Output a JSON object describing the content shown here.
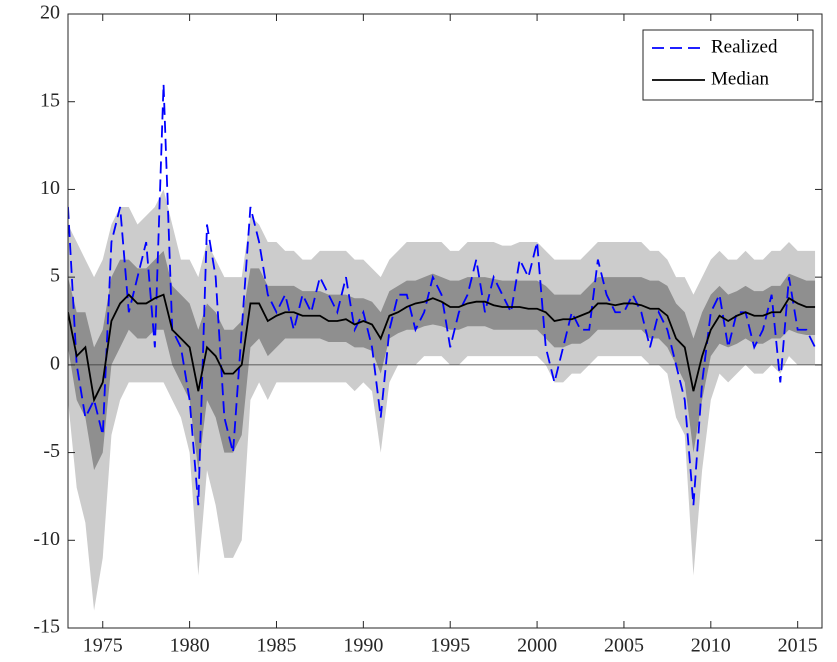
{
  "chart_data": {
    "type": "line",
    "xlim": [
      1973,
      2016.4
    ],
    "ylim": [
      -15,
      20
    ],
    "xticks": [
      1975,
      1980,
      1985,
      1990,
      1995,
      2000,
      2005,
      2010,
      2015
    ],
    "yticks": [
      -15,
      -10,
      -5,
      0,
      5,
      10,
      15,
      20
    ],
    "legend": "upper right",
    "x": [
      1973,
      1973.5,
      1974,
      1974.5,
      1975,
      1975.5,
      1976,
      1976.5,
      1977,
      1977.5,
      1978,
      1978.5,
      1979,
      1979.5,
      1980,
      1980.5,
      1981,
      1981.5,
      1982,
      1982.5,
      1983,
      1983.5,
      1984,
      1984.5,
      1985,
      1985.5,
      1986,
      1986.5,
      1987,
      1987.5,
      1988,
      1988.5,
      1989,
      1989.5,
      1990,
      1990.5,
      1991,
      1991.5,
      1992,
      1992.5,
      1993,
      1993.5,
      1994,
      1994.5,
      1995,
      1995.5,
      1996,
      1996.5,
      1997,
      1997.5,
      1998,
      1998.5,
      1999,
      1999.5,
      2000,
      2000.5,
      2001,
      2001.5,
      2002,
      2002.5,
      2003,
      2003.5,
      2004,
      2004.5,
      2005,
      2005.5,
      2006,
      2006.5,
      2007,
      2007.5,
      2008,
      2008.5,
      2009,
      2009.5,
      2010,
      2010.5,
      2011,
      2011.5,
      2012,
      2012.5,
      2013,
      2013.5,
      2014,
      2014.5,
      2015,
      2015.5,
      2016
    ],
    "bands": [
      {
        "color": "#cccccc",
        "lower": [
          -2,
          -7,
          -9,
          -14,
          -11,
          -4,
          -2,
          -1,
          -1,
          -1,
          -1,
          -1,
          -2,
          -3,
          -5,
          -12,
          -6,
          -8,
          -11,
          -11,
          -10,
          -2,
          -1,
          -2,
          -1,
          -1,
          -1,
          -1,
          -1,
          -1,
          -1,
          -1,
          -1,
          -1.5,
          -1,
          -1.5,
          -5,
          -1,
          0,
          0,
          0,
          0.5,
          0.5,
          0.5,
          0,
          0,
          0.5,
          0.5,
          0.5,
          0.5,
          0.5,
          0.5,
          0.5,
          0.5,
          0.5,
          0,
          -1,
          -1,
          -0.5,
          -0.5,
          0,
          0.5,
          0.5,
          0.5,
          0.5,
          0.5,
          0.5,
          0,
          0,
          -0.5,
          -3,
          -4,
          -12,
          -6,
          -2,
          -0.5,
          -1,
          -0.5,
          0,
          -0.5,
          -0.5,
          0,
          -0.5,
          0.5,
          0,
          0,
          0
        ],
        "upper": [
          8,
          7,
          6,
          5,
          6,
          8,
          9,
          9,
          8,
          8.5,
          9,
          10,
          8,
          6,
          6,
          5,
          7,
          6,
          5,
          5,
          5,
          8.5,
          8,
          7,
          7,
          6.5,
          6.5,
          6,
          6,
          6.5,
          6.5,
          6.5,
          6.5,
          6,
          6,
          5.5,
          5,
          6,
          6.5,
          7,
          7,
          7,
          7,
          7,
          6.5,
          6.5,
          7,
          7,
          7,
          7,
          6.8,
          6.8,
          7,
          7,
          7,
          6.5,
          6,
          6,
          6,
          6,
          6.5,
          7,
          7,
          7,
          7,
          7,
          7,
          6.5,
          6.5,
          6,
          5,
          5,
          4,
          5,
          6,
          6.5,
          6,
          6,
          6.5,
          6,
          6,
          6.5,
          6.5,
          7,
          6.5,
          6.5,
          6.5
        ]
      },
      {
        "color": "#8f8f8f",
        "lower": [
          1,
          -2,
          -3,
          -6,
          -5,
          0,
          1,
          2,
          1.5,
          1.5,
          2,
          2,
          0,
          -1,
          -2,
          -6,
          -2,
          -3,
          -5,
          -5,
          -4,
          1,
          1.5,
          0.5,
          1,
          1.5,
          1.5,
          1.5,
          1.5,
          1.5,
          1.3,
          1.3,
          1.3,
          1,
          1,
          0.8,
          -0.5,
          1.5,
          1.8,
          2,
          2,
          2.2,
          2.3,
          2.2,
          2,
          2,
          2.2,
          2.2,
          2.2,
          2,
          2,
          2,
          2,
          2,
          2,
          1.5,
          1,
          1,
          1.2,
          1.2,
          1.5,
          2,
          2,
          2,
          2,
          2,
          2,
          1.5,
          1.5,
          1,
          0,
          -1,
          -5,
          -2,
          0.5,
          1.2,
          1,
          1.2,
          1.5,
          1.2,
          1.2,
          1.5,
          1.5,
          2,
          1.8,
          1.7,
          1.7
        ],
        "upper": [
          5,
          3,
          3,
          1,
          2,
          5,
          6,
          6,
          5.5,
          5.5,
          6,
          6.5,
          4.5,
          4,
          3.5,
          2,
          3.5,
          3,
          2,
          2,
          2.5,
          5.5,
          5.5,
          4.5,
          4.5,
          4.5,
          4.5,
          4.2,
          4.2,
          4.2,
          4,
          4,
          4,
          3.8,
          3.8,
          3.6,
          3,
          4.2,
          4.5,
          4.8,
          4.8,
          5,
          5.2,
          5,
          4.8,
          4.8,
          5,
          5,
          5,
          4.9,
          4.8,
          4.8,
          4.8,
          4.8,
          4.8,
          4.5,
          4,
          4,
          4,
          4,
          4.5,
          5,
          5,
          5,
          5,
          5,
          5,
          4.8,
          4.8,
          4.5,
          3.5,
          3,
          1.5,
          3,
          4,
          4.5,
          4,
          4.2,
          4.5,
          4.2,
          4.2,
          4.5,
          4.5,
          5.2,
          5,
          4.8,
          4.8
        ]
      }
    ],
    "series": [
      {
        "name": "Realized",
        "color": "#0000ff",
        "dashed": true,
        "values": [
          9,
          0,
          -3,
          -2,
          -4,
          7,
          9,
          3,
          5,
          7,
          1,
          16,
          2,
          1,
          -2,
          -8,
          8,
          5,
          -3,
          -5,
          2,
          9,
          7,
          4,
          3,
          4,
          2,
          4,
          3,
          5,
          4,
          3,
          5,
          2,
          3,
          1,
          -3,
          2,
          4,
          4,
          2,
          3,
          5,
          4,
          1,
          3,
          4,
          6,
          3,
          5,
          4,
          3,
          6,
          5,
          7,
          1,
          -1,
          1,
          3,
          2,
          2,
          6,
          4,
          3,
          3,
          4,
          3,
          1,
          3,
          2,
          0,
          -2,
          -8,
          -1,
          3,
          4,
          1,
          3,
          3,
          1,
          2,
          4,
          -1,
          5,
          2,
          2,
          1
        ]
      },
      {
        "name": "Median",
        "color": "#000000",
        "dashed": false,
        "values": [
          3,
          0.5,
          1,
          -2,
          -1,
          2.5,
          3.5,
          4,
          3.5,
          3.5,
          3.8,
          4,
          2,
          1.5,
          1,
          -1.5,
          1,
          0.5,
          -0.5,
          -0.5,
          0,
          3.5,
          3.5,
          2.5,
          2.8,
          3,
          3,
          2.8,
          2.8,
          2.8,
          2.5,
          2.5,
          2.6,
          2.3,
          2.5,
          2.3,
          1.5,
          2.8,
          3,
          3.3,
          3.5,
          3.6,
          3.8,
          3.6,
          3.3,
          3.3,
          3.5,
          3.6,
          3.6,
          3.4,
          3.3,
          3.3,
          3.3,
          3.2,
          3.2,
          3,
          2.5,
          2.6,
          2.6,
          2.8,
          3,
          3.5,
          3.5,
          3.4,
          3.5,
          3.5,
          3.4,
          3.2,
          3.2,
          2.8,
          1.5,
          1,
          -1.5,
          0.5,
          2,
          2.8,
          2.5,
          2.8,
          3,
          2.8,
          2.8,
          3,
          3,
          3.8,
          3.5,
          3.3,
          3.3
        ]
      }
    ]
  }
}
